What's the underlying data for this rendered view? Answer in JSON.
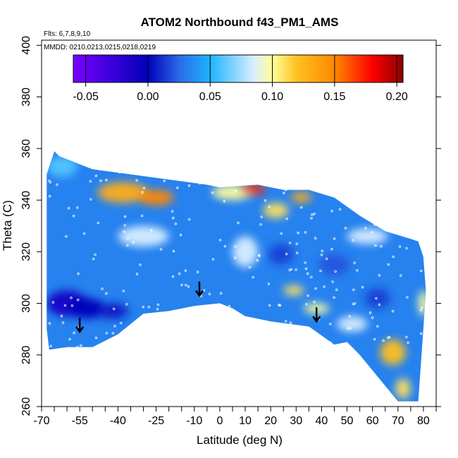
{
  "chart_data": {
    "type": "heatmap",
    "title": "ATOM2 Northbound f43_PM1_AMS",
    "annotations": [
      "Flts: 6,7,8,9,10",
      "MMDD: 0210,0213,0215,0218,0219"
    ],
    "xlabel": "Latitude (deg N)",
    "ylabel": "Theta (C)",
    "xlim": [
      -70,
      85
    ],
    "ylim": [
      260,
      402
    ],
    "x_ticks": [
      -70,
      -55,
      -40,
      -25,
      -10,
      0,
      10,
      20,
      30,
      40,
      50,
      60,
      70,
      80
    ],
    "x_minor_ticks": [
      -65,
      -60,
      -50,
      -45,
      -35,
      -30,
      -20,
      -15,
      -5,
      5,
      15,
      25,
      35,
      45,
      55,
      65,
      75,
      85
    ],
    "y_ticks": [
      260,
      280,
      300,
      320,
      340,
      360,
      380,
      400
    ],
    "colorbar": {
      "min": -0.06,
      "max": 0.205,
      "ticks": [
        -0.05,
        0.0,
        0.05,
        0.1,
        0.15,
        0.2
      ],
      "tick_labels": [
        "-0.05",
        "0.00",
        "0.05",
        "0.10",
        "0.15",
        "0.20"
      ],
      "colors": [
        "#7a00ff",
        "#0000b8",
        "#2a6ae8",
        "#1eb4ff",
        "#d8eeff",
        "#ffff9a",
        "#ffc020",
        "#ff8800",
        "#ff0000",
        "#8b0000"
      ],
      "stops": [
        -0.06,
        0.0,
        0.025,
        0.05,
        0.085,
        0.1,
        0.12,
        0.15,
        0.18,
        0.205
      ]
    },
    "arrows": [
      {
        "lat": -55,
        "theta": 289
      },
      {
        "lat": -8,
        "theta": 303
      },
      {
        "lat": 38,
        "theta": 293
      }
    ],
    "domain_outline": [
      [
        -68,
        350
      ],
      [
        -65,
        359
      ],
      [
        -63,
        357
      ],
      [
        -50,
        352
      ],
      [
        -35,
        350
      ],
      [
        -20,
        348
      ],
      [
        -5,
        346
      ],
      [
        0,
        345
      ],
      [
        15,
        346
      ],
      [
        25,
        344
      ],
      [
        35,
        344
      ],
      [
        45,
        341
      ],
      [
        55,
        334
      ],
      [
        65,
        328
      ],
      [
        75,
        325
      ],
      [
        78,
        324
      ],
      [
        80,
        318
      ],
      [
        81,
        305
      ],
      [
        80,
        290
      ],
      [
        78,
        262
      ],
      [
        70,
        262
      ],
      [
        55,
        280
      ],
      [
        50,
        285
      ],
      [
        45,
        284
      ],
      [
        35,
        291
      ],
      [
        20,
        293
      ],
      [
        10,
        295
      ],
      [
        5,
        298
      ],
      [
        0,
        300
      ],
      [
        -10,
        299
      ],
      [
        -20,
        297
      ],
      [
        -30,
        296
      ],
      [
        -40,
        288
      ],
      [
        -50,
        283
      ],
      [
        -60,
        283
      ],
      [
        -67,
        282
      ],
      [
        -68,
        290
      ],
      [
        -68,
        320
      ]
    ],
    "field_features": [
      {
        "lat": -38,
        "theta": 343,
        "value": 0.13,
        "rx": 10,
        "ry": 4
      },
      {
        "lat": -25,
        "theta": 341,
        "value": 0.15,
        "rx": 7,
        "ry": 3
      },
      {
        "lat": 5,
        "theta": 343,
        "value": 0.1,
        "rx": 8,
        "ry": 3
      },
      {
        "lat": 13,
        "theta": 344,
        "value": 0.17,
        "rx": 5,
        "ry": 2
      },
      {
        "lat": 22,
        "theta": 336,
        "value": 0.11,
        "rx": 5,
        "ry": 3
      },
      {
        "lat": 32,
        "theta": 341,
        "value": 0.13,
        "rx": 4,
        "ry": 2
      },
      {
        "lat": -60,
        "theta": 300,
        "value": -0.01,
        "rx": 8,
        "ry": 5
      },
      {
        "lat": -52,
        "theta": 298,
        "value": 0.0,
        "rx": 7,
        "ry": 4
      },
      {
        "lat": -42,
        "theta": 297,
        "value": 0.005,
        "rx": 6,
        "ry": 3
      },
      {
        "lat": 24,
        "theta": 319,
        "value": 0.015,
        "rx": 5,
        "ry": 4
      },
      {
        "lat": 45,
        "theta": 315,
        "value": 0.02,
        "rx": 6,
        "ry": 4
      },
      {
        "lat": 62,
        "theta": 302,
        "value": 0.015,
        "rx": 5,
        "ry": 4
      },
      {
        "lat": 29,
        "theta": 305,
        "value": 0.11,
        "rx": 4,
        "ry": 2
      },
      {
        "lat": 38,
        "theta": 298,
        "value": 0.1,
        "rx": 5,
        "ry": 2
      },
      {
        "lat": 68,
        "theta": 281,
        "value": 0.12,
        "rx": 5,
        "ry": 5
      },
      {
        "lat": 72,
        "theta": 267,
        "value": 0.11,
        "rx": 3,
        "ry": 4
      },
      {
        "lat": 80,
        "theta": 300,
        "value": 0.1,
        "rx": 2,
        "ry": 5
      },
      {
        "lat": 58,
        "theta": 326,
        "value": 0.085,
        "rx": 8,
        "ry": 3
      },
      {
        "lat": -30,
        "theta": 326,
        "value": 0.085,
        "rx": 10,
        "ry": 4
      },
      {
        "lat": 10,
        "theta": 320,
        "value": 0.085,
        "rx": 5,
        "ry": 6
      },
      {
        "lat": 52,
        "theta": 292,
        "value": 0.085,
        "rx": 6,
        "ry": 3
      },
      {
        "lat": -62,
        "theta": 353,
        "value": 0.06,
        "rx": 6,
        "ry": 4
      }
    ]
  }
}
